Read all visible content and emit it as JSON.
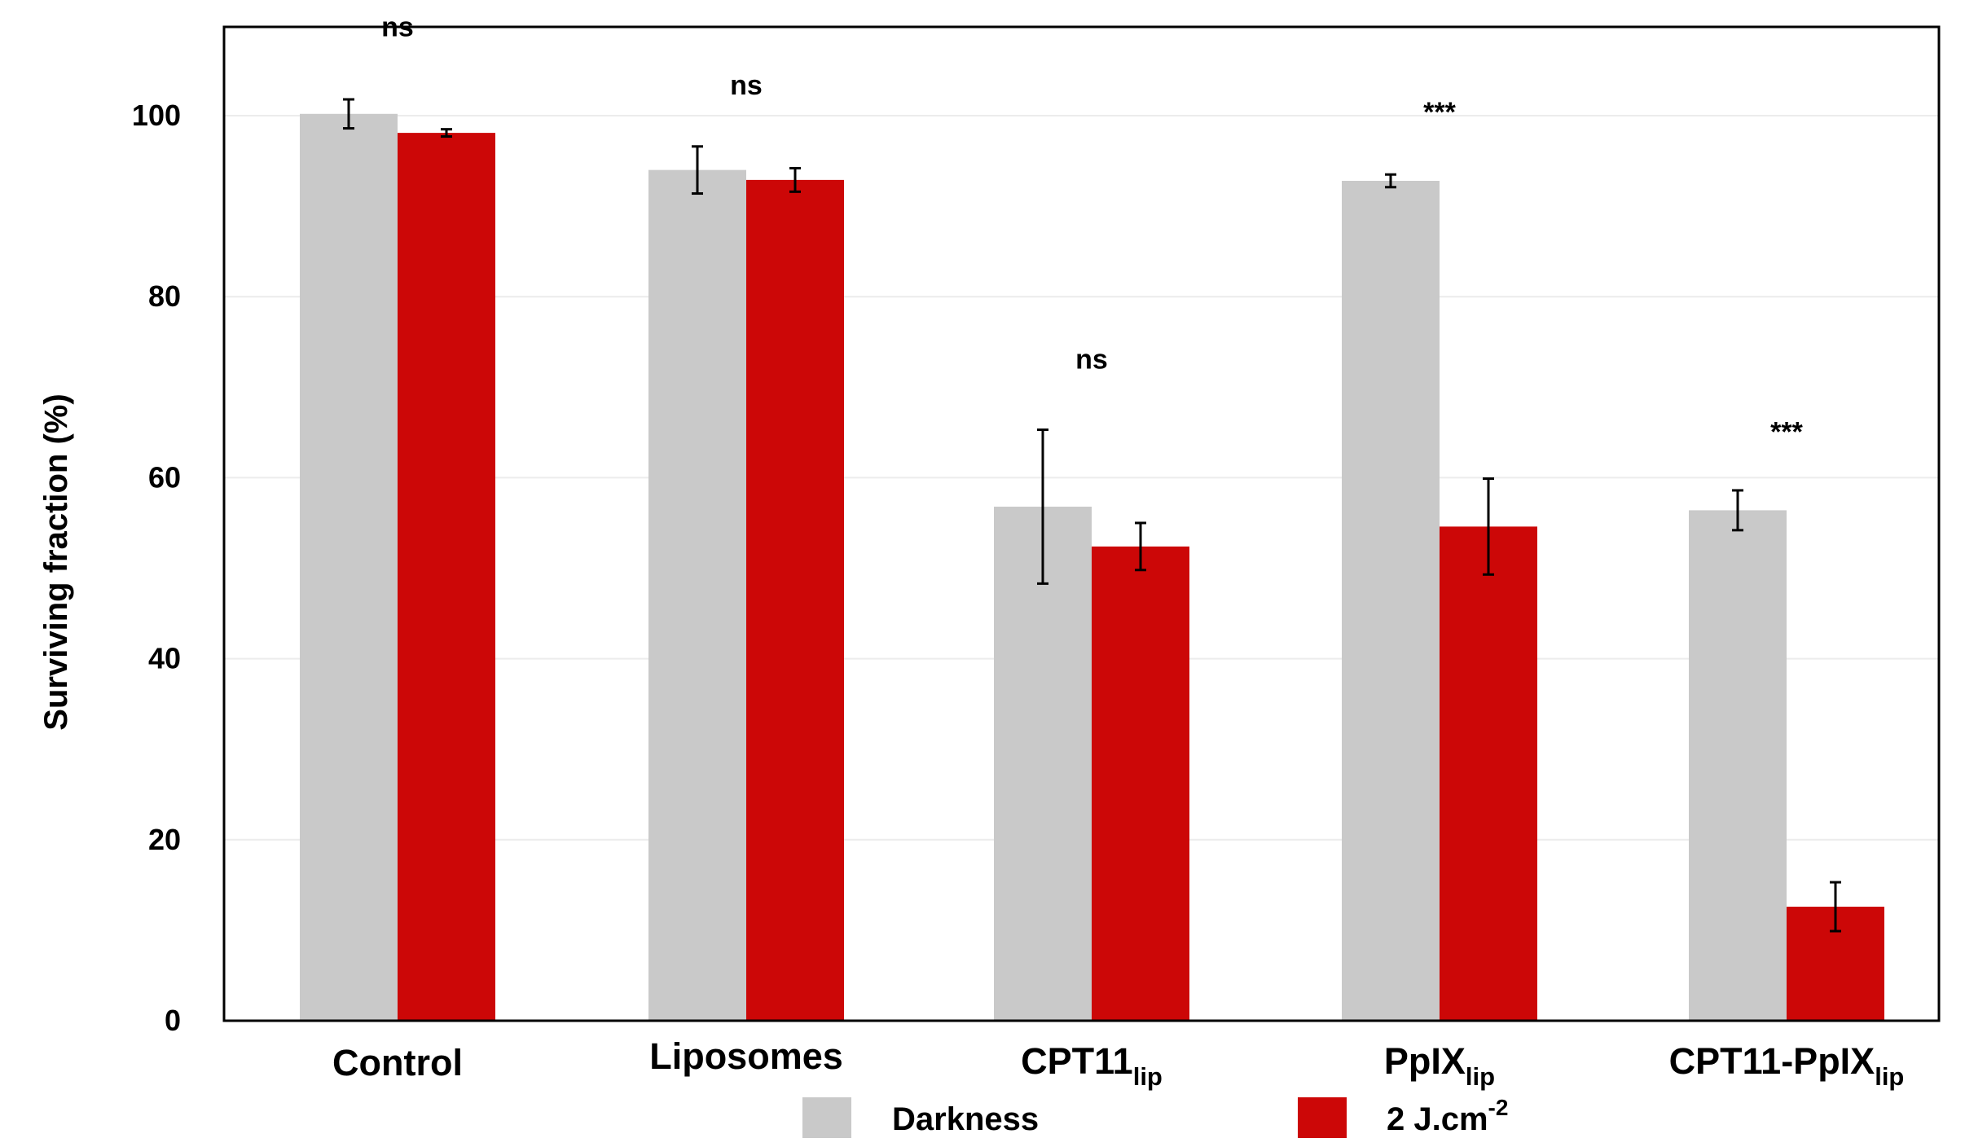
{
  "chart_data": {
    "type": "bar",
    "title": "",
    "xlabel": "",
    "ylabel": "Surviving fraction (%)",
    "ylim": [
      0,
      110
    ],
    "yticks": [
      0,
      20,
      40,
      60,
      80,
      100
    ],
    "grid": true,
    "legend_position": "bottom",
    "categories": [
      {
        "main": "Control",
        "sub": ""
      },
      {
        "main": "Liposomes",
        "sub": ""
      },
      {
        "main": "CPT11",
        "sub": "lip"
      },
      {
        "main": "PpIX",
        "sub": "lip"
      },
      {
        "main": "CPT11-PpIX",
        "sub": "lip"
      }
    ],
    "series": [
      {
        "name": "Darkness",
        "color": "#c9c9c9",
        "values": [
          100.2,
          94.0,
          56.8,
          92.8,
          56.4
        ],
        "errors": [
          1.6,
          2.6,
          8.5,
          0.7,
          2.2
        ]
      },
      {
        "name": "2 J.cm",
        "name_sup": "-2",
        "color": "#cc0707",
        "values": [
          98.1,
          92.9,
          52.4,
          54.6,
          12.6
        ],
        "errors": [
          0.4,
          1.3,
          2.6,
          5.3,
          2.7
        ]
      }
    ],
    "annotations": [
      "ns",
      "ns",
      "ns",
      "***",
      "***"
    ],
    "annotation_values": [
      110.2,
      103.8,
      73.5,
      100.8,
      65.5
    ]
  }
}
